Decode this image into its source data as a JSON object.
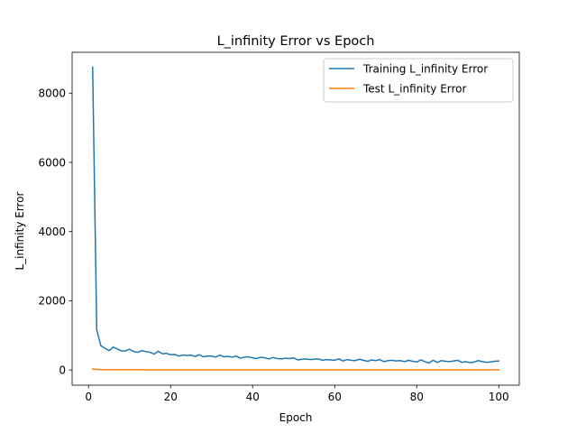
{
  "chart_data": {
    "type": "line",
    "title": "L_infinity Error vs Epoch",
    "xlabel": "Epoch",
    "ylabel": "L_infinity Error",
    "xlim": [
      -4,
      105
    ],
    "ylim": [
      -440,
      9180
    ],
    "xticks": [
      0,
      20,
      40,
      60,
      80,
      100
    ],
    "yticks": [
      0,
      2000,
      4000,
      6000,
      8000
    ],
    "xtick_labels": [
      "0",
      "20",
      "40",
      "60",
      "80",
      "100"
    ],
    "ytick_labels": [
      "0",
      "2000",
      "4000",
      "6000",
      "8000"
    ],
    "grid": false,
    "legend_position": "upper right",
    "series": [
      {
        "name": "Training L_infinity Error",
        "color": "#1f77b4",
        "x": [
          1,
          2,
          3,
          4,
          5,
          6,
          7,
          8,
          9,
          10,
          11,
          12,
          13,
          14,
          15,
          16,
          17,
          18,
          19,
          20,
          21,
          22,
          23,
          24,
          25,
          26,
          27,
          28,
          29,
          30,
          31,
          32,
          33,
          34,
          35,
          36,
          37,
          38,
          39,
          40,
          41,
          42,
          43,
          44,
          45,
          46,
          47,
          48,
          49,
          50,
          51,
          52,
          53,
          54,
          55,
          56,
          57,
          58,
          59,
          60,
          61,
          62,
          63,
          64,
          65,
          66,
          67,
          68,
          69,
          70,
          71,
          72,
          73,
          74,
          75,
          76,
          77,
          78,
          79,
          80,
          81,
          82,
          83,
          84,
          85,
          86,
          87,
          88,
          89,
          90,
          91,
          92,
          93,
          94,
          95,
          96,
          97,
          98,
          99,
          100
        ],
        "values": [
          8750,
          1160,
          700,
          630,
          560,
          660,
          610,
          550,
          550,
          600,
          530,
          510,
          560,
          530,
          510,
          460,
          540,
          470,
          480,
          440,
          450,
          400,
          430,
          420,
          430,
          390,
          440,
          380,
          400,
          400,
          370,
          430,
          380,
          390,
          370,
          400,
          340,
          370,
          380,
          350,
          330,
          370,
          350,
          320,
          360,
          330,
          320,
          340,
          330,
          350,
          290,
          310,
          320,
          300,
          310,
          320,
          280,
          300,
          290,
          280,
          320,
          260,
          300,
          280,
          270,
          310,
          280,
          250,
          290,
          270,
          300,
          240,
          270,
          280,
          260,
          270,
          240,
          280,
          250,
          230,
          290,
          240,
          200,
          280,
          220,
          270,
          250,
          240,
          260,
          280,
          220,
          240,
          210,
          230,
          270,
          240,
          220,
          230,
          250,
          260
        ]
      },
      {
        "name": "Test L_infinity Error",
        "color": "#ff7f0e",
        "x": [
          1,
          2,
          3,
          4,
          5,
          6,
          7,
          8,
          9,
          10,
          11,
          12,
          13,
          14,
          15,
          16,
          17,
          18,
          19,
          20,
          21,
          22,
          23,
          24,
          25,
          26,
          27,
          28,
          29,
          30,
          31,
          32,
          33,
          34,
          35,
          36,
          37,
          38,
          39,
          40,
          41,
          42,
          43,
          44,
          45,
          46,
          47,
          48,
          49,
          50,
          51,
          52,
          53,
          54,
          55,
          56,
          57,
          58,
          59,
          60,
          61,
          62,
          63,
          64,
          65,
          66,
          67,
          68,
          69,
          70,
          71,
          72,
          73,
          74,
          75,
          76,
          77,
          78,
          79,
          80,
          81,
          82,
          83,
          84,
          85,
          86,
          87,
          88,
          89,
          90,
          91,
          92,
          93,
          94,
          95,
          96,
          97,
          98,
          99,
          100
        ],
        "values": [
          25,
          15,
          10,
          8,
          7,
          6,
          6,
          5,
          5,
          5,
          5,
          5,
          5,
          4,
          4,
          4,
          4,
          4,
          4,
          4,
          4,
          4,
          4,
          4,
          4,
          4,
          4,
          4,
          4,
          4,
          4,
          4,
          4,
          4,
          4,
          4,
          4,
          4,
          4,
          4,
          4,
          4,
          4,
          4,
          4,
          4,
          4,
          4,
          4,
          4,
          4,
          4,
          4,
          4,
          4,
          4,
          4,
          4,
          4,
          4,
          4,
          4,
          4,
          4,
          4,
          4,
          4,
          4,
          4,
          4,
          4,
          4,
          4,
          4,
          4,
          4,
          4,
          4,
          4,
          4,
          4,
          4,
          4,
          4,
          4,
          4,
          4,
          4,
          4,
          4,
          4,
          4,
          4,
          4,
          4,
          4,
          4,
          4,
          4,
          4
        ]
      }
    ]
  }
}
